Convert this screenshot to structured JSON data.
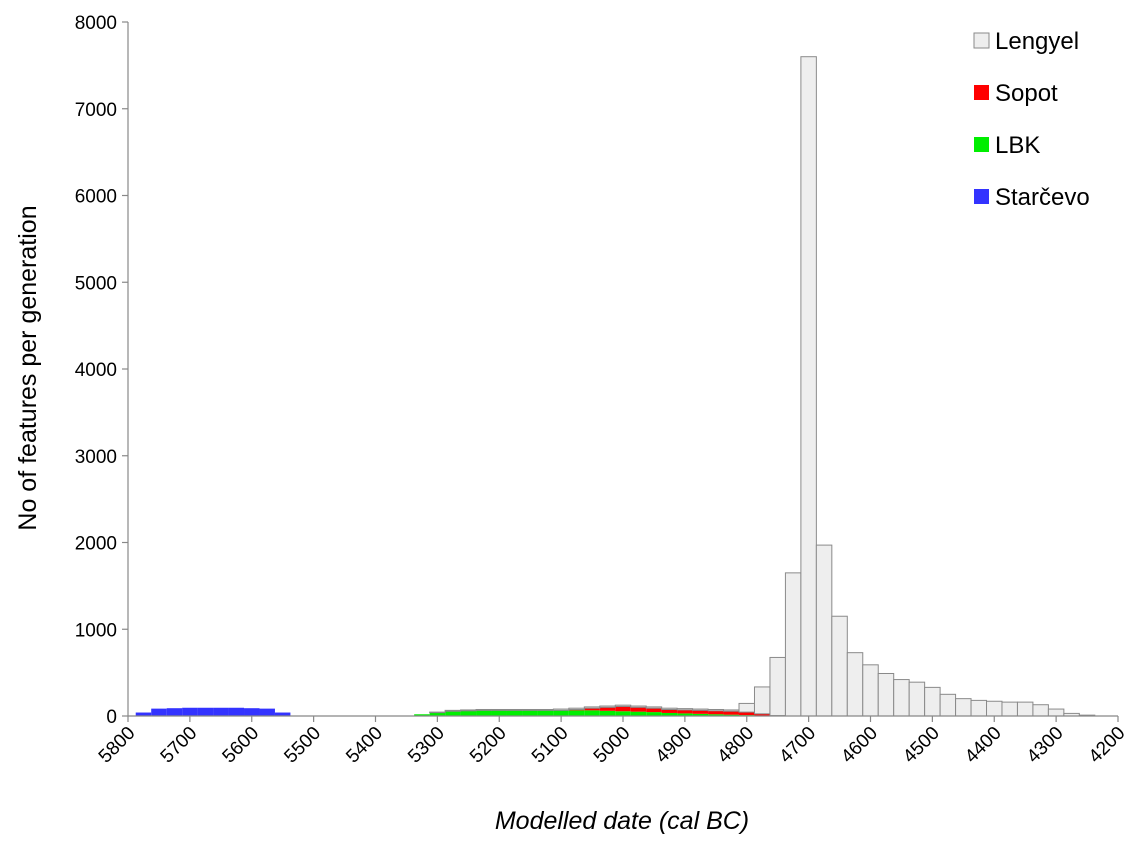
{
  "chart_data": {
    "type": "bar",
    "title": "",
    "xlabel": "Modelled date (cal BC)",
    "ylabel": "No of features per generation",
    "xlim": [
      5800,
      4200
    ],
    "x_reversed": true,
    "ylim": [
      0,
      8000
    ],
    "bin_width": 25,
    "stacked": true,
    "grid": false,
    "legend_position": "top-right",
    "x_ticks": [
      "5800",
      "5700",
      "5600",
      "5500",
      "5400",
      "5300",
      "5200",
      "5100",
      "5000",
      "4900",
      "4800",
      "4700",
      "4600",
      "4500",
      "4400",
      "4300",
      "4200"
    ],
    "y_ticks": [
      "0",
      "1000",
      "2000",
      "3000",
      "4000",
      "5000",
      "6000",
      "7000",
      "8000"
    ],
    "colors": {
      "Lengyel": "#eeeeee",
      "Sopot": "#ff0000",
      "LBK": "#00ee00",
      "Starčevo": "#3333ff"
    },
    "legend": [
      "Lengyel",
      "Sopot",
      "LBK",
      "Starčevo"
    ],
    "x": [
      5775,
      5750,
      5725,
      5700,
      5675,
      5650,
      5625,
      5600,
      5575,
      5550,
      5525,
      5500,
      5475,
      5450,
      5425,
      5400,
      5375,
      5350,
      5325,
      5300,
      5275,
      5250,
      5225,
      5200,
      5175,
      5150,
      5125,
      5100,
      5075,
      5050,
      5025,
      5000,
      4975,
      4950,
      4925,
      4900,
      4875,
      4850,
      4825,
      4800,
      4775,
      4750,
      4725,
      4700,
      4675,
      4650,
      4625,
      4600,
      4575,
      4550,
      4525,
      4500,
      4475,
      4450,
      4425,
      4400,
      4375,
      4350,
      4325,
      4300,
      4275,
      4250,
      4225
    ],
    "series": [
      {
        "name": "Starčevo",
        "values": [
          40,
          85,
          90,
          95,
          95,
          95,
          95,
          90,
          85,
          40,
          0,
          0,
          0,
          0,
          0,
          0,
          0,
          0,
          0,
          0,
          0,
          0,
          0,
          0,
          0,
          0,
          0,
          0,
          0,
          0,
          0,
          0,
          0,
          0,
          0,
          0,
          0,
          0,
          0,
          0,
          0,
          0,
          0,
          0,
          0,
          0,
          0,
          0,
          0,
          0,
          0,
          0,
          0,
          0,
          0,
          0,
          0,
          0,
          0,
          0,
          0,
          0,
          0
        ]
      },
      {
        "name": "LBK",
        "values": [
          0,
          0,
          0,
          0,
          0,
          0,
          0,
          0,
          0,
          0,
          0,
          0,
          0,
          0,
          0,
          0,
          0,
          0,
          20,
          40,
          55,
          60,
          65,
          65,
          65,
          65,
          65,
          65,
          65,
          65,
          60,
          55,
          50,
          45,
          35,
          30,
          25,
          20,
          15,
          10,
          5,
          0,
          0,
          0,
          0,
          0,
          0,
          0,
          0,
          0,
          0,
          0,
          0,
          0,
          0,
          0,
          0,
          0,
          0,
          0,
          0,
          0,
          0
        ]
      },
      {
        "name": "Sopot",
        "values": [
          0,
          0,
          0,
          0,
          0,
          0,
          0,
          0,
          0,
          0,
          0,
          0,
          0,
          0,
          0,
          0,
          0,
          0,
          0,
          0,
          0,
          0,
          0,
          0,
          0,
          0,
          0,
          0,
          10,
          25,
          40,
          55,
          50,
          45,
          40,
          40,
          40,
          40,
          40,
          35,
          20,
          5,
          0,
          0,
          0,
          0,
          0,
          0,
          0,
          0,
          0,
          0,
          0,
          0,
          0,
          0,
          0,
          0,
          0,
          0,
          0,
          0,
          0
        ]
      },
      {
        "name": "Lengyel",
        "values": [
          0,
          0,
          0,
          0,
          0,
          0,
          0,
          0,
          0,
          0,
          0,
          0,
          0,
          0,
          0,
          0,
          0,
          0,
          0,
          5,
          10,
          10,
          10,
          10,
          10,
          10,
          10,
          15,
          15,
          15,
          15,
          15,
          15,
          15,
          15,
          15,
          15,
          15,
          15,
          100,
          310,
          670,
          1650,
          7600,
          1970,
          1150,
          730,
          590,
          490,
          420,
          390,
          330,
          250,
          200,
          180,
          170,
          160,
          160,
          130,
          80,
          30,
          10,
          0
        ]
      }
    ]
  }
}
